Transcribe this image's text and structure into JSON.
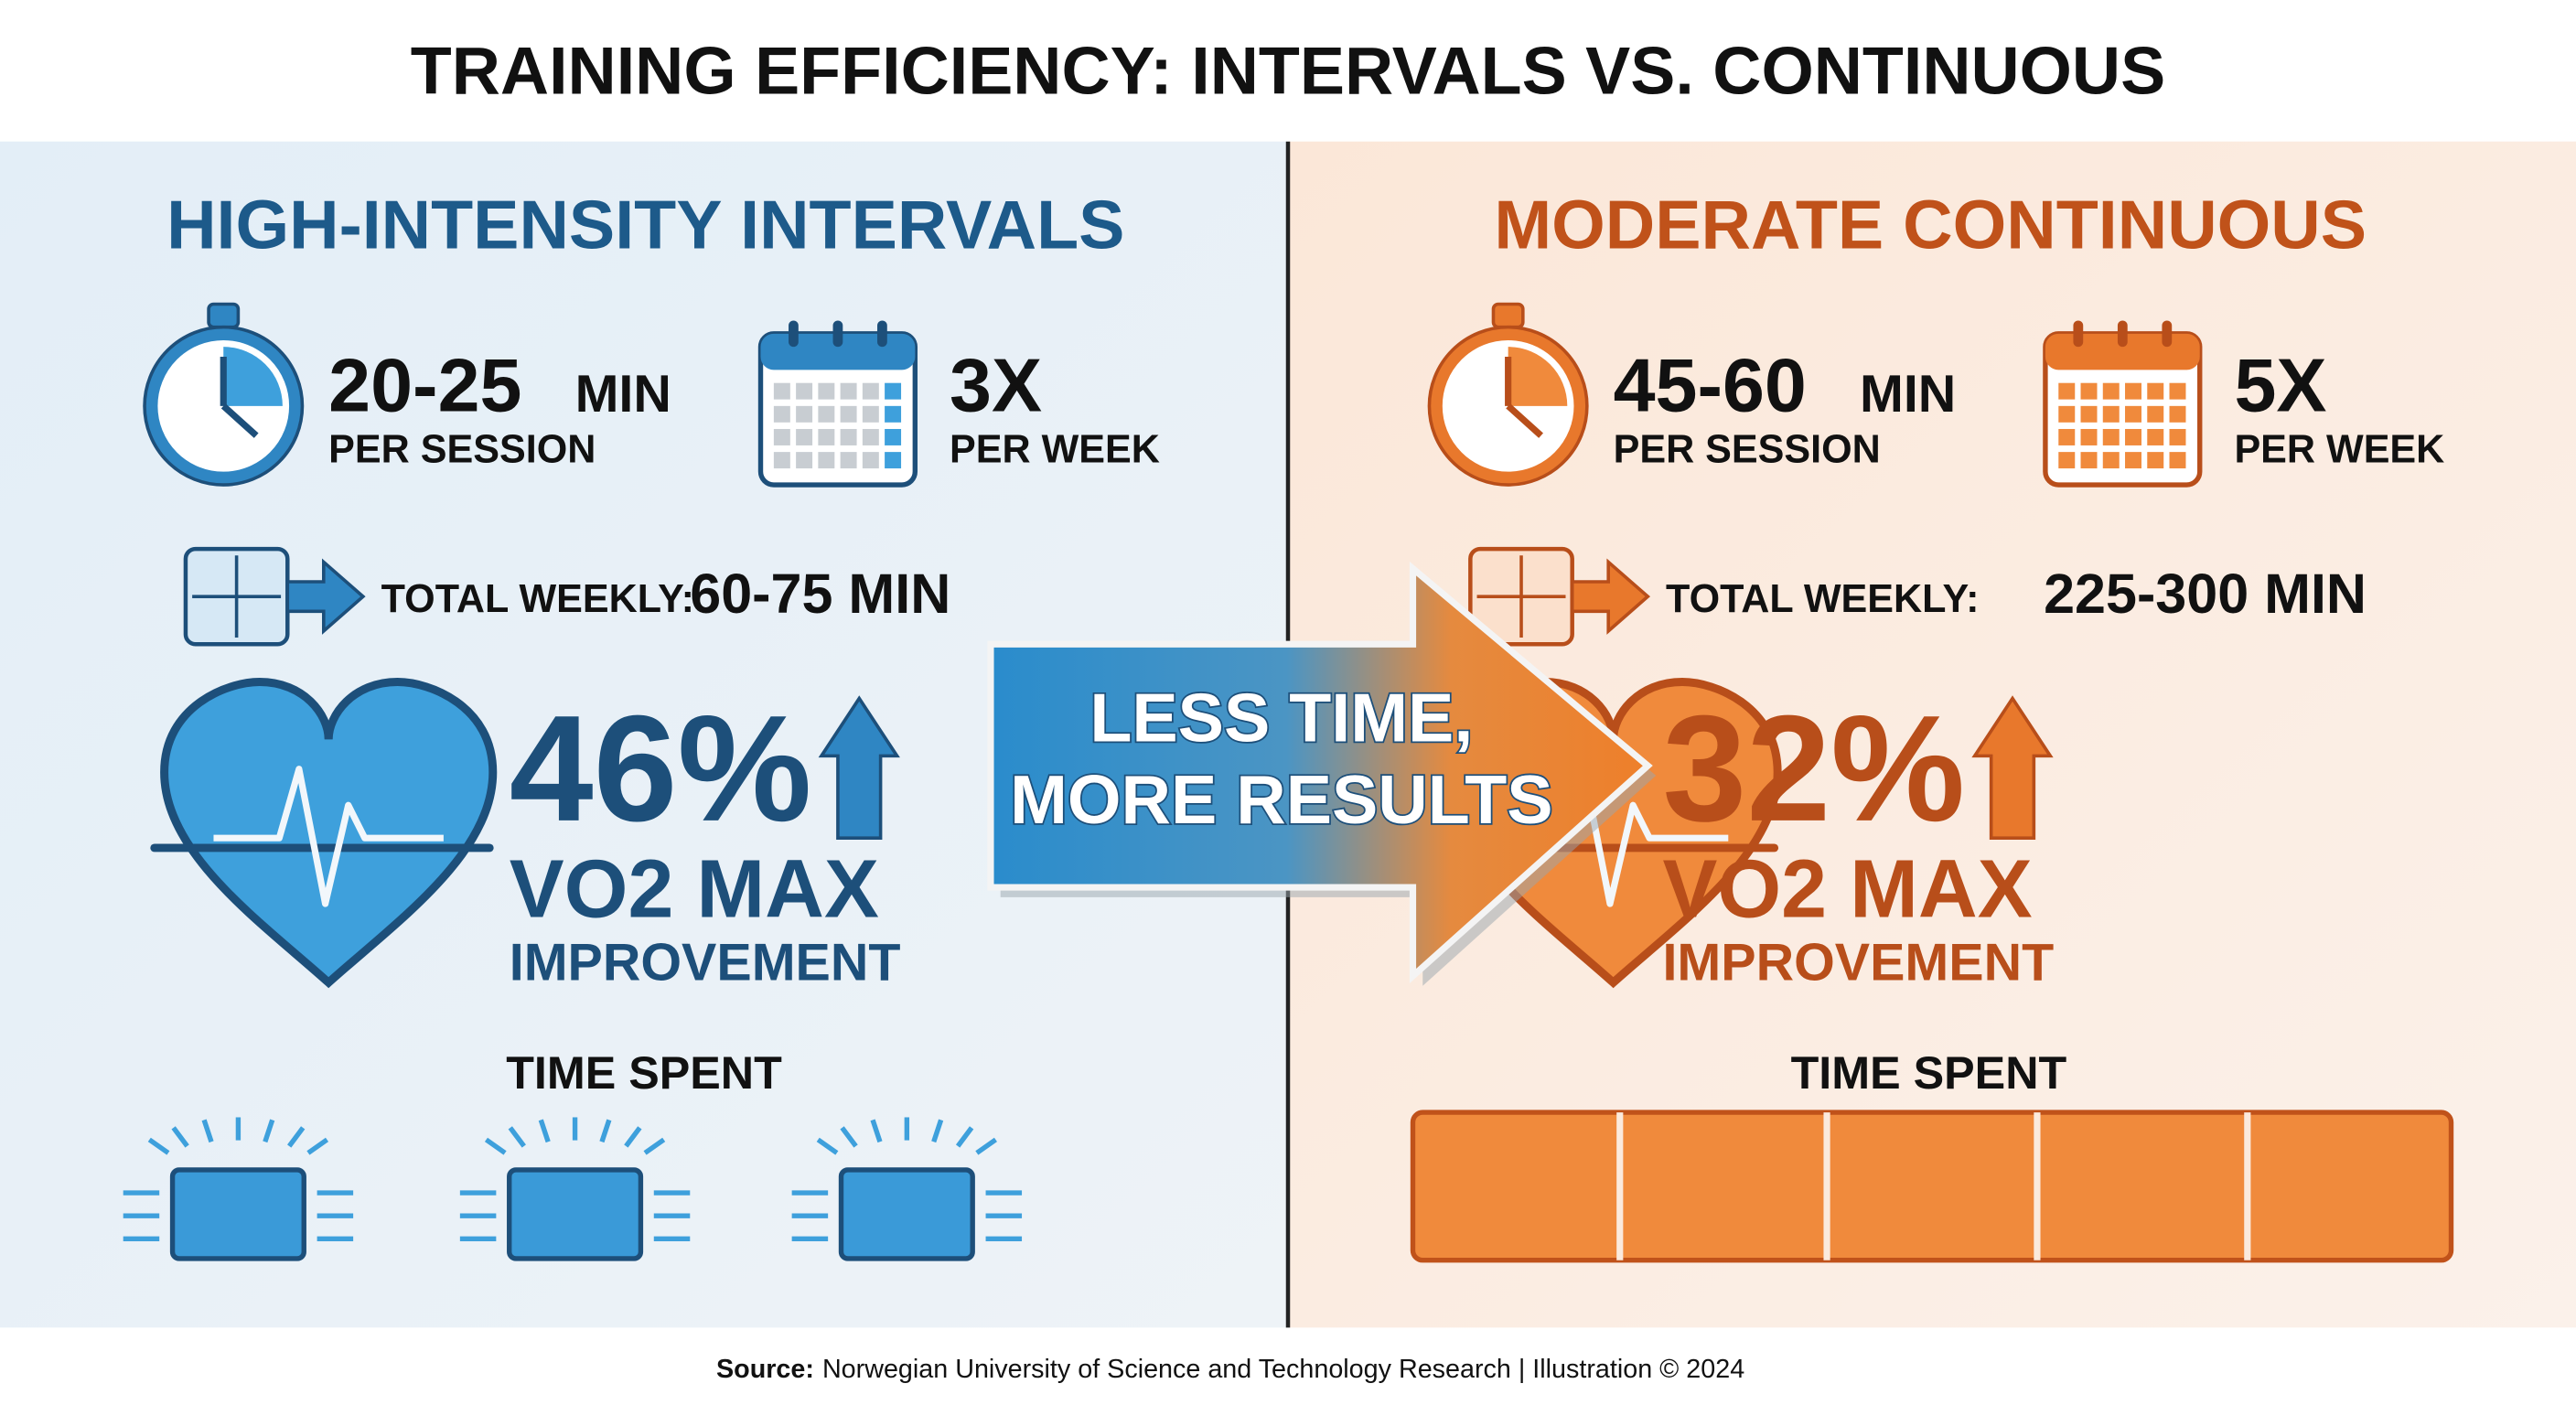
{
  "title": "TRAINING EFFICIENCY: INTERVALS VS. CONTINUOUS",
  "panels": [
    {
      "heading": "HIGH-INTENSITY INTERVALS",
      "session": {
        "value": "20-25",
        "unit": "MIN",
        "label": "PER SESSION"
      },
      "frequency": {
        "value": "3X",
        "label": "PER WEEK"
      },
      "total": {
        "label": "TOTAL WEEKLY:",
        "value": "60-75 MIN"
      },
      "improvement": {
        "value": "46%",
        "label": "VO2 MAX",
        "sublabel": "IMPROVEMENT"
      },
      "time_label": "TIME SPENT"
    },
    {
      "heading": "MODERATE CONTINUOUS",
      "session": {
        "value": "45-60",
        "unit": "MIN",
        "label": "PER SESSION"
      },
      "frequency": {
        "value": "5X",
        "label": "PER WEEK"
      },
      "total": {
        "label": "TOTAL WEEKLY:",
        "value": "225-300 MIN"
      },
      "improvement": {
        "value": "32%",
        "label": "VO2 MAX",
        "sublabel": "IMPROVEMENT"
      },
      "time_label": "TIME SPENT"
    }
  ],
  "arrow_text": [
    "LESS TIME,",
    "MORE RESULTS"
  ],
  "source": {
    "label": "Source:",
    "text": "Norwegian University of Science and Technology Research | Illustration © 2024"
  }
}
